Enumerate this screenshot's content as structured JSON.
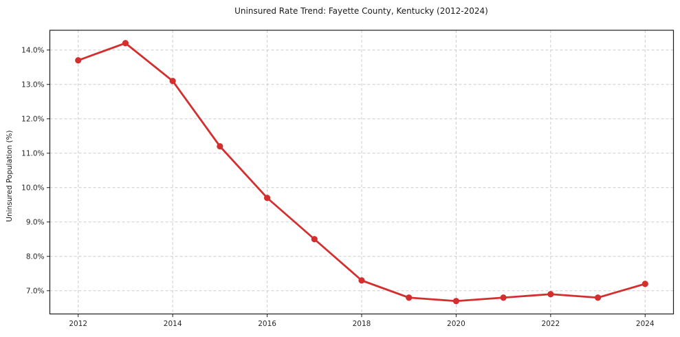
{
  "chart_data": {
    "type": "line",
    "title": "Uninsured Rate Trend: Fayette County, Kentucky (2012-2024)",
    "xlabel": "",
    "ylabel": "Uninsured Population (%)",
    "x": [
      2012,
      2013,
      2014,
      2015,
      2016,
      2017,
      2018,
      2019,
      2020,
      2021,
      2022,
      2023,
      2024
    ],
    "values": [
      13.7,
      14.2,
      13.1,
      11.2,
      9.7,
      8.5,
      7.3,
      6.8,
      6.7,
      6.8,
      6.9,
      6.8,
      7.2
    ],
    "xlim": [
      2011.4,
      2024.6
    ],
    "ylim": [
      6.325,
      14.575
    ],
    "x_ticks": [
      2012,
      2014,
      2016,
      2018,
      2020,
      2022,
      2024
    ],
    "x_tick_labels": [
      "2012",
      "2014",
      "2016",
      "2018",
      "2020",
      "2022",
      "2024"
    ],
    "y_ticks": [
      7,
      8,
      9,
      10,
      11,
      12,
      13,
      14
    ],
    "y_tick_labels": [
      "7.0%",
      "8.0%",
      "9.0%",
      "10.0%",
      "11.0%",
      "12.0%",
      "13.0%",
      "14.0%"
    ],
    "grid": true,
    "grid_style": "dashed",
    "legend": false,
    "line_color": "#d32f2f",
    "marker": "o"
  },
  "colors": {
    "background": "#ffffff",
    "grid": "#cccccc",
    "spine": "#1a1a1a",
    "tick": "#1a1a1a",
    "tick_label": "#262626",
    "title": "#1a1a1a"
  }
}
